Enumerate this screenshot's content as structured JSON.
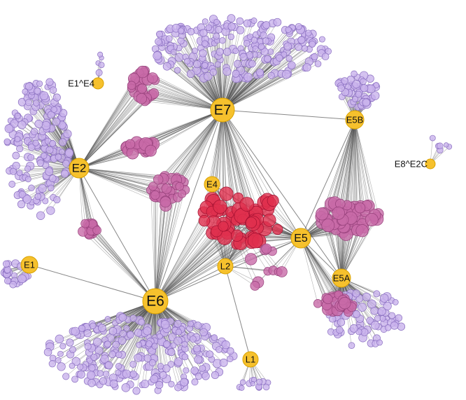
{
  "nodes": [
    {
      "label": "E7"
    },
    {
      "label": "E2"
    },
    {
      "label": "E6"
    },
    {
      "label": "E5"
    },
    {
      "label": "E5B"
    },
    {
      "label": "E5A"
    },
    {
      "label": "E4"
    },
    {
      "label": "L2"
    },
    {
      "label": "L1"
    },
    {
      "label": "E1"
    },
    {
      "label": "E1^E4"
    },
    {
      "label": "E8^E2C"
    }
  ]
}
